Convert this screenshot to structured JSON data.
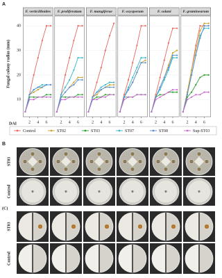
{
  "panel_labels": {
    "a": "A",
    "b": "B",
    "c": "(C)"
  },
  "photo_rows": {
    "b": [
      "ST03",
      "Control"
    ],
    "c": [
      "ST03",
      "Control"
    ]
  },
  "chart_data": {
    "type": "line",
    "ylabel": "Fungal colony radius (mm)",
    "xlabel": "DAI",
    "x": [
      1,
      2,
      3,
      4,
      5,
      6,
      7
    ],
    "xlim": [
      0.5,
      7.5
    ],
    "xticks": [
      2,
      4,
      6
    ],
    "ylim": [
      3,
      44
    ],
    "yticks": [
      10,
      20,
      30,
      40
    ],
    "series": [
      {
        "name": "Control",
        "color": "#e8675d"
      },
      {
        "name": "ST02",
        "color": "#c9a227"
      },
      {
        "name": "ST03",
        "color": "#2ca02c"
      },
      {
        "name": "ST07",
        "color": "#35b7c9"
      },
      {
        "name": "ST08",
        "color": "#5a8fd6"
      },
      {
        "name": "Sup-ST03",
        "color": "#c86ad0"
      }
    ],
    "facets": [
      {
        "title": "F. verticillioides",
        "series": [
          {
            "values": [
              5,
              12,
              20,
              27,
              34,
              40,
              40
            ]
          },
          {
            "values": [
              5,
              12,
              13,
              14,
              15,
              16,
              16
            ]
          },
          {
            "values": [
              5,
              11,
              11,
              11,
              11,
              12,
              12
            ]
          },
          {
            "values": [
              5,
              12,
              14,
              15,
              16,
              16,
              16
            ]
          },
          {
            "values": [
              5,
              12,
              14,
              15,
              15,
              16,
              16
            ]
          },
          {
            "values": [
              5,
              10,
              10,
              11,
              11,
              11,
              11
            ]
          }
        ]
      },
      {
        "title": "F. proliferatum",
        "series": [
          {
            "values": [
              5,
              12,
              20,
              27,
              34,
              40,
              40
            ]
          },
          {
            "values": [
              5,
              11,
              13,
              15,
              17,
              19,
              19
            ]
          },
          {
            "values": [
              5,
              11,
              11,
              11,
              11,
              12,
              12
            ]
          },
          {
            "values": [
              5,
              12,
              15,
              18,
              22,
              27,
              27
            ]
          },
          {
            "values": [
              5,
              11,
              13,
              15,
              16,
              18,
              18
            ]
          },
          {
            "values": [
              5,
              10,
              10,
              11,
              11,
              11,
              11
            ]
          }
        ]
      },
      {
        "title": "F. mangiferae",
        "series": [
          {
            "values": [
              5,
              11,
              17,
              23,
              30,
              36,
              41
            ]
          },
          {
            "values": [
              5,
              11,
              12,
              14,
              15,
              16,
              16
            ]
          },
          {
            "values": [
              5,
              10,
              11,
              11,
              12,
              12,
              12
            ]
          },
          {
            "values": [
              5,
              11,
              13,
              15,
              16,
              17,
              17
            ]
          },
          {
            "values": [
              5,
              11,
              13,
              14,
              15,
              15,
              15
            ]
          },
          {
            "values": [
              5,
              10,
              10,
              11,
              11,
              12,
              12
            ]
          }
        ]
      },
      {
        "title": "F. oxysporum",
        "series": [
          {
            "values": [
              5,
              12,
              18,
              25,
              32,
              40,
              40
            ]
          },
          {
            "values": [
              5,
              11,
              14,
              17,
              21,
              25,
              26
            ]
          },
          {
            "values": [
              5,
              11,
              11,
              11,
              12,
              12,
              12
            ]
          },
          {
            "values": [
              5,
              11,
              15,
              19,
              23,
              27,
              27
            ]
          },
          {
            "values": [
              5,
              11,
              14,
              17,
              21,
              25,
              25
            ]
          },
          {
            "values": [
              5,
              10,
              11,
              11,
              12,
              12,
              12
            ]
          }
        ]
      },
      {
        "title": "F. solani",
        "series": [
          {
            "values": [
              5,
              12,
              19,
              26,
              33,
              39,
              39
            ]
          },
          {
            "values": [
              5,
              11,
              15,
              19,
              24,
              29,
              30
            ]
          },
          {
            "values": [
              5,
              11,
              12,
              12,
              13,
              13,
              13
            ]
          },
          {
            "values": [
              5,
              11,
              14,
              18,
              22,
              27,
              27
            ]
          },
          {
            "values": [
              5,
              11,
              15,
              19,
              23,
              28,
              28
            ]
          },
          {
            "values": [
              5,
              10,
              11,
              12,
              13,
              14,
              14
            ]
          }
        ]
      },
      {
        "title": "F. graminearum",
        "series": [
          {
            "values": [
              5,
              13,
              22,
              32,
              40,
              40,
              40
            ]
          },
          {
            "values": [
              5,
              13,
              22,
              30,
              38,
              41,
              41
            ]
          },
          {
            "values": [
              5,
              11,
              13,
              16,
              19,
              20,
              20
            ]
          },
          {
            "values": [
              5,
              12,
              20,
              28,
              36,
              39,
              39
            ]
          },
          {
            "values": [
              5,
              12,
              20,
              28,
              35,
              40,
              40
            ]
          },
          {
            "values": [
              5,
              10,
              11,
              12,
              12,
              13,
              13
            ]
          }
        ]
      }
    ]
  }
}
